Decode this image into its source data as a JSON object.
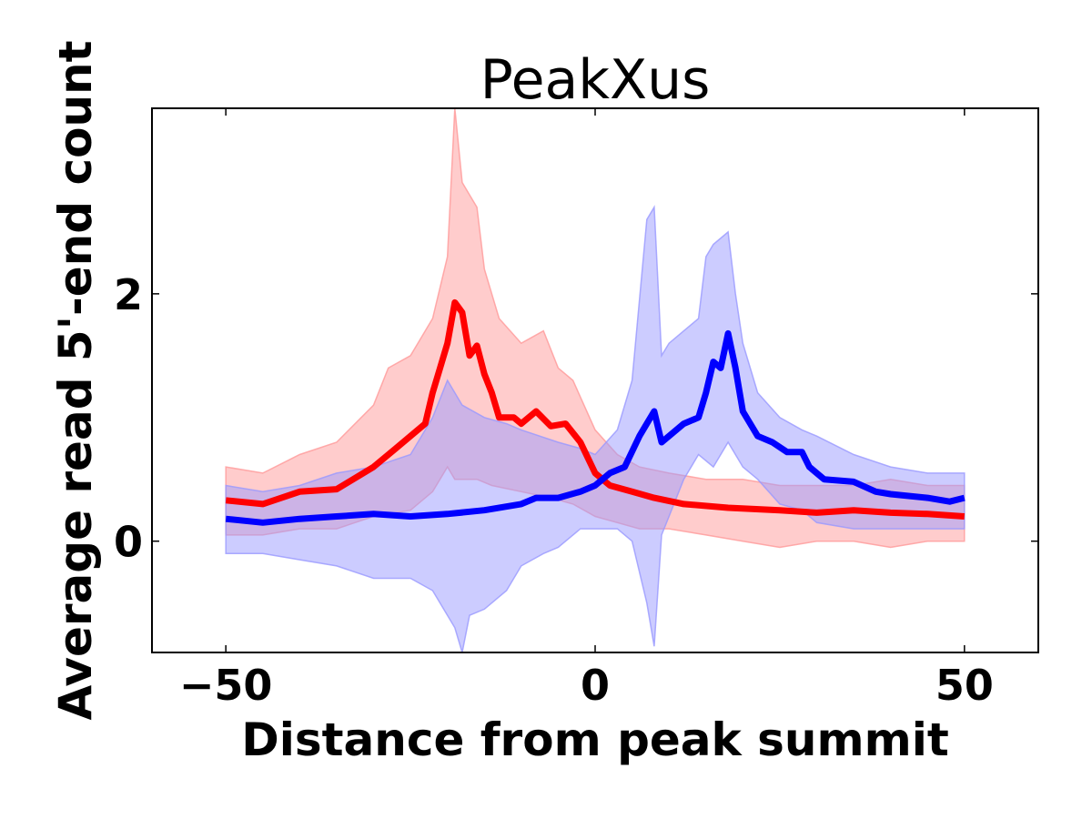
{
  "chart_data": {
    "type": "line",
    "title": "PeakXus",
    "xlabel": "Distance from peak summit",
    "ylabel": "Average read 5'-end count",
    "xlim": [
      -60,
      60
    ],
    "ylim": [
      -0.9,
      3.5
    ],
    "x_ticks": [
      -50,
      0,
      50
    ],
    "x_tick_labels": [
      "−50",
      "0",
      "50"
    ],
    "y_ticks": [
      0,
      2
    ],
    "y_tick_labels": [
      "0",
      "2"
    ],
    "grid": false,
    "legend": "none",
    "series": [
      {
        "color": "#ff0000",
        "band_color": "#ff9999",
        "points": [
          [
            -50,
            0.33
          ],
          [
            -45,
            0.3
          ],
          [
            -40,
            0.4
          ],
          [
            -35,
            0.42
          ],
          [
            -30,
            0.6
          ],
          [
            -27,
            0.75
          ],
          [
            -25,
            0.85
          ],
          [
            -23,
            0.95
          ],
          [
            -22,
            1.2
          ],
          [
            -21,
            1.4
          ],
          [
            -20,
            1.6
          ],
          [
            -19,
            1.93
          ],
          [
            -18,
            1.85
          ],
          [
            -17,
            1.5
          ],
          [
            -16,
            1.58
          ],
          [
            -15,
            1.35
          ],
          [
            -14,
            1.2
          ],
          [
            -13,
            1.0
          ],
          [
            -11,
            1.0
          ],
          [
            -10,
            0.95
          ],
          [
            -8,
            1.05
          ],
          [
            -6,
            0.93
          ],
          [
            -4,
            0.95
          ],
          [
            -2,
            0.8
          ],
          [
            0,
            0.55
          ],
          [
            2,
            0.45
          ],
          [
            5,
            0.4
          ],
          [
            8,
            0.35
          ],
          [
            12,
            0.3
          ],
          [
            18,
            0.27
          ],
          [
            25,
            0.25
          ],
          [
            30,
            0.23
          ],
          [
            35,
            0.25
          ],
          [
            40,
            0.23
          ],
          [
            45,
            0.22
          ],
          [
            50,
            0.2
          ]
        ],
        "band_upper": [
          [
            -50,
            0.6
          ],
          [
            -45,
            0.55
          ],
          [
            -40,
            0.7
          ],
          [
            -35,
            0.8
          ],
          [
            -30,
            1.1
          ],
          [
            -28,
            1.4
          ],
          [
            -25,
            1.5
          ],
          [
            -22,
            1.8
          ],
          [
            -20,
            2.3
          ],
          [
            -19,
            3.5
          ],
          [
            -18,
            2.9
          ],
          [
            -16,
            2.7
          ],
          [
            -15,
            2.2
          ],
          [
            -13,
            1.8
          ],
          [
            -10,
            1.6
          ],
          [
            -7,
            1.7
          ],
          [
            -5,
            1.4
          ],
          [
            -3,
            1.3
          ],
          [
            0,
            0.9
          ],
          [
            3,
            0.7
          ],
          [
            6,
            0.6
          ],
          [
            10,
            0.55
          ],
          [
            15,
            0.5
          ],
          [
            20,
            0.5
          ],
          [
            25,
            0.45
          ],
          [
            30,
            0.45
          ],
          [
            35,
            0.45
          ],
          [
            40,
            0.5
          ],
          [
            45,
            0.45
          ],
          [
            50,
            0.45
          ]
        ],
        "band_lower": [
          [
            -50,
            0.05
          ],
          [
            -45,
            0.05
          ],
          [
            -40,
            0.1
          ],
          [
            -35,
            0.1
          ],
          [
            -30,
            0.2
          ],
          [
            -25,
            0.25
          ],
          [
            -22,
            0.4
          ],
          [
            -20,
            0.6
          ],
          [
            -19,
            0.5
          ],
          [
            -18,
            0.5
          ],
          [
            -16,
            0.5
          ],
          [
            -14,
            0.45
          ],
          [
            -10,
            0.4
          ],
          [
            -6,
            0.35
          ],
          [
            -3,
            0.3
          ],
          [
            0,
            0.2
          ],
          [
            3,
            0.15
          ],
          [
            6,
            0.1
          ],
          [
            10,
            0.1
          ],
          [
            15,
            0.05
          ],
          [
            20,
            0.0
          ],
          [
            25,
            -0.05
          ],
          [
            30,
            0.0
          ],
          [
            35,
            0.0
          ],
          [
            40,
            -0.05
          ],
          [
            45,
            0.0
          ],
          [
            50,
            0.0
          ]
        ]
      },
      {
        "color": "#0000ff",
        "band_color": "#9999ff",
        "points": [
          [
            -50,
            0.18
          ],
          [
            -45,
            0.15
          ],
          [
            -40,
            0.18
          ],
          [
            -35,
            0.2
          ],
          [
            -30,
            0.22
          ],
          [
            -25,
            0.2
          ],
          [
            -20,
            0.22
          ],
          [
            -15,
            0.25
          ],
          [
            -10,
            0.3
          ],
          [
            -8,
            0.35
          ],
          [
            -5,
            0.35
          ],
          [
            -2,
            0.4
          ],
          [
            0,
            0.45
          ],
          [
            2,
            0.55
          ],
          [
            4,
            0.6
          ],
          [
            6,
            0.85
          ],
          [
            7,
            0.95
          ],
          [
            8,
            1.05
          ],
          [
            9,
            0.8
          ],
          [
            10,
            0.85
          ],
          [
            12,
            0.95
          ],
          [
            14,
            1.0
          ],
          [
            15,
            1.2
          ],
          [
            16,
            1.45
          ],
          [
            17,
            1.4
          ],
          [
            18,
            1.68
          ],
          [
            19,
            1.4
          ],
          [
            20,
            1.05
          ],
          [
            22,
            0.85
          ],
          [
            24,
            0.8
          ],
          [
            26,
            0.72
          ],
          [
            28,
            0.72
          ],
          [
            29,
            0.6
          ],
          [
            31,
            0.5
          ],
          [
            35,
            0.48
          ],
          [
            38,
            0.4
          ],
          [
            40,
            0.38
          ],
          [
            45,
            0.35
          ],
          [
            48,
            0.32
          ],
          [
            50,
            0.35
          ]
        ],
        "band_upper": [
          [
            -50,
            0.45
          ],
          [
            -45,
            0.4
          ],
          [
            -40,
            0.45
          ],
          [
            -35,
            0.55
          ],
          [
            -30,
            0.6
          ],
          [
            -25,
            0.7
          ],
          [
            -22,
            1.0
          ],
          [
            -20,
            1.3
          ],
          [
            -18,
            1.1
          ],
          [
            -15,
            1.0
          ],
          [
            -12,
            0.95
          ],
          [
            -10,
            0.9
          ],
          [
            -5,
            0.8
          ],
          [
            -2,
            0.75
          ],
          [
            0,
            0.7
          ],
          [
            3,
            0.9
          ],
          [
            5,
            1.3
          ],
          [
            7,
            2.6
          ],
          [
            8,
            2.7
          ],
          [
            9,
            1.5
          ],
          [
            10,
            1.6
          ],
          [
            12,
            1.7
          ],
          [
            14,
            1.8
          ],
          [
            15,
            2.3
          ],
          [
            16,
            2.4
          ],
          [
            18,
            2.5
          ],
          [
            19,
            2.0
          ],
          [
            20,
            1.6
          ],
          [
            22,
            1.2
          ],
          [
            25,
            1.0
          ],
          [
            28,
            0.9
          ],
          [
            30,
            0.85
          ],
          [
            35,
            0.7
          ],
          [
            40,
            0.6
          ],
          [
            45,
            0.55
          ],
          [
            50,
            0.55
          ]
        ],
        "band_lower": [
          [
            -50,
            -0.1
          ],
          [
            -45,
            -0.1
          ],
          [
            -40,
            -0.15
          ],
          [
            -35,
            -0.2
          ],
          [
            -30,
            -0.3
          ],
          [
            -25,
            -0.3
          ],
          [
            -22,
            -0.4
          ],
          [
            -20,
            -0.6
          ],
          [
            -19,
            -0.7
          ],
          [
            -18,
            -0.9
          ],
          [
            -17,
            -0.6
          ],
          [
            -15,
            -0.55
          ],
          [
            -12,
            -0.4
          ],
          [
            -10,
            -0.2
          ],
          [
            -7,
            -0.1
          ],
          [
            -5,
            -0.05
          ],
          [
            -2,
            0.1
          ],
          [
            0,
            0.1
          ],
          [
            3,
            0.1
          ],
          [
            5,
            0.0
          ],
          [
            7,
            -0.5
          ],
          [
            8,
            -0.85
          ],
          [
            9,
            0.05
          ],
          [
            10,
            0.2
          ],
          [
            12,
            0.5
          ],
          [
            14,
            0.7
          ],
          [
            16,
            0.6
          ],
          [
            18,
            0.8
          ],
          [
            20,
            0.6
          ],
          [
            22,
            0.5
          ],
          [
            25,
            0.3
          ],
          [
            28,
            0.25
          ],
          [
            30,
            0.15
          ],
          [
            35,
            0.1
          ],
          [
            40,
            0.1
          ],
          [
            45,
            0.1
          ],
          [
            50,
            0.1
          ]
        ]
      }
    ]
  }
}
